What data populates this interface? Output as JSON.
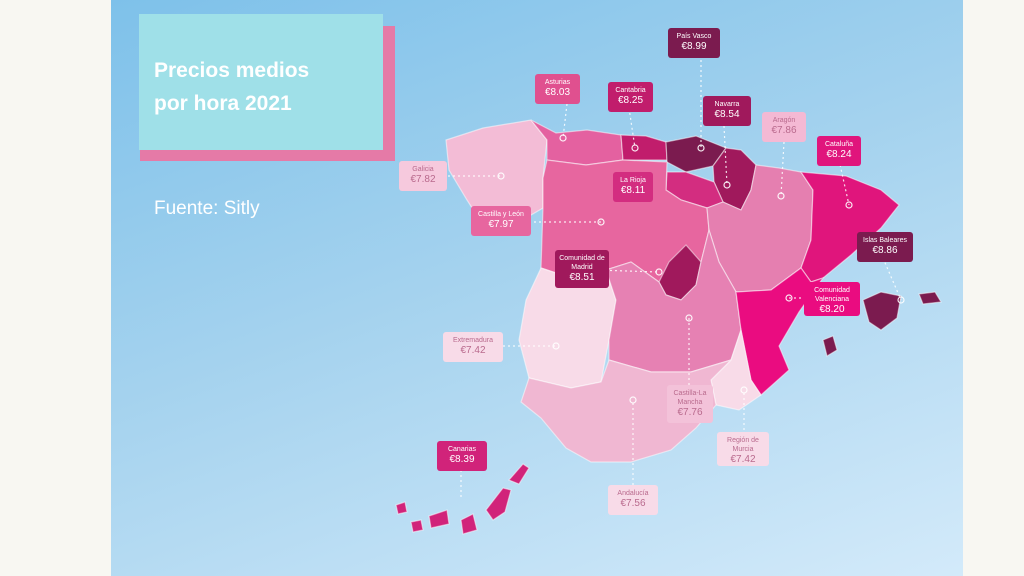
{
  "title": "Precios medios\npor hora 2021",
  "source": "Fuente: Sitly",
  "colors": {
    "sea_top": "#7ec1ea",
    "title_box": "#9fe0e8",
    "title_shadow": "#e57aa7",
    "darkest": "#7b1b4f",
    "dark": "#a0195c",
    "strong": "#e0157c",
    "mid": "#e461a0",
    "soft": "#ec8fbb",
    "light": "#f3bcd6",
    "lightest": "#f8dbe8"
  },
  "regions": [
    {
      "name": "País Vasco",
      "price": "€8.99"
    },
    {
      "name": "Asturias",
      "price": "€8.03"
    },
    {
      "name": "Cantabria",
      "price": "€8.25"
    },
    {
      "name": "Navarra",
      "price": "€8.54"
    },
    {
      "name": "Aragón",
      "price": "€7.86"
    },
    {
      "name": "Cataluña",
      "price": "€8.24"
    },
    {
      "name": "Galicia",
      "price": "€7.82"
    },
    {
      "name": "La Rioja",
      "price": "€8.11"
    },
    {
      "name": "Castilla y León",
      "price": "€7.97"
    },
    {
      "name": "Islas Baleares",
      "price": "€8.86"
    },
    {
      "name": "Comunidad de Madrid",
      "price": "€8.51"
    },
    {
      "name": "Comunidad Valenciana",
      "price": "€8.20"
    },
    {
      "name": "Extremadura",
      "price": "€7.42"
    },
    {
      "name": "Castilla-La Mancha",
      "price": "€7.76"
    },
    {
      "name": "Región de Murcia",
      "price": "€7.42"
    },
    {
      "name": "Canarias",
      "price": "€8.39"
    },
    {
      "name": "Andalucía",
      "price": "€7.56"
    }
  ]
}
